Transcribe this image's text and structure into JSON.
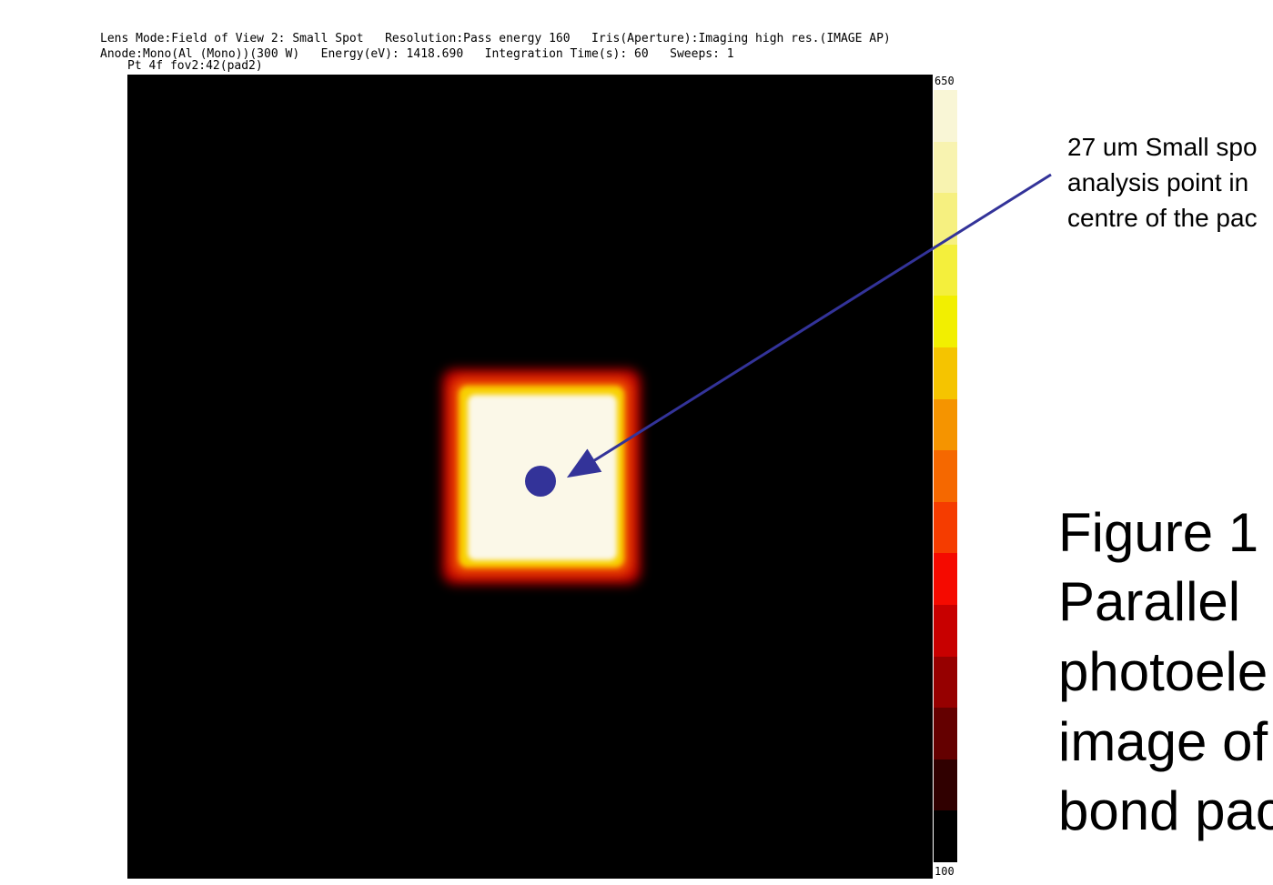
{
  "header": {
    "line1": "Lens Mode:Field of View 2: Small Spot   Resolution:Pass energy 160   Iris(Aperture):Imaging high res.(IMAGE AP)",
    "line2": "Anode:Mono(Al (Mono))(300 W)   Energy(eV): 1418.690   Integration Time(s): 60   Sweeps: 1",
    "line3": "Pt 4f fov2:42(pad2)"
  },
  "colorbar": {
    "max_label": "650",
    "min_label": "100"
  },
  "annotation": {
    "lines": [
      "27 um Small spo",
      "analysis point in",
      "centre of the pac"
    ]
  },
  "caption": {
    "lines": [
      "Figure 1",
      "Parallel",
      "photoele",
      "image of",
      "bond pac"
    ]
  }
}
